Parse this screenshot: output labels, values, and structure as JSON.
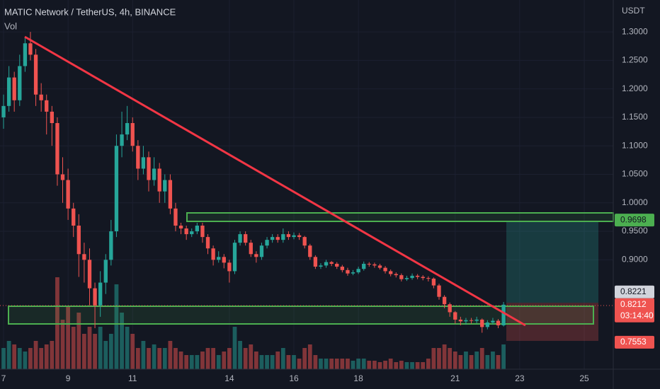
{
  "chart_data": {
    "type": "candlestick",
    "title": "MATIC Network / TetherUS, 4h, BINANCE",
    "volume_label": "Vol",
    "y_axis_label": "USDT",
    "up_color": "#26a69a",
    "down_color": "#ef5350",
    "xlim": [
      6.89,
      25.9
    ],
    "xticks": [
      7,
      9,
      11,
      14,
      16,
      18,
      21,
      23,
      25
    ],
    "ylim": [
      0.708,
      1.356
    ],
    "yticks": [
      {
        "value": 1.3,
        "label": "1.3000"
      },
      {
        "value": 1.25,
        "label": "1.2500"
      },
      {
        "value": 1.2,
        "label": "1.2000"
      },
      {
        "value": 1.15,
        "label": "1.1500"
      },
      {
        "value": 1.1,
        "label": "1.1000"
      },
      {
        "value": 1.05,
        "label": "1.0500"
      },
      {
        "value": 1.0,
        "label": "1.0000"
      },
      {
        "value": 0.95,
        "label": "0.9500"
      },
      {
        "value": 0.9,
        "label": "0.9000"
      }
    ],
    "grid": true,
    "x": [
      7,
      7.167,
      7.333,
      7.5,
      7.667,
      7.833,
      8,
      8.167,
      8.333,
      8.5,
      8.667,
      8.833,
      9,
      9.167,
      9.333,
      9.5,
      9.667,
      9.833,
      10,
      10.167,
      10.333,
      10.5,
      10.667,
      10.833,
      11,
      11.167,
      11.333,
      11.5,
      11.667,
      11.833,
      12,
      12.167,
      12.333,
      12.5,
      12.667,
      12.833,
      13,
      13.167,
      13.333,
      13.5,
      13.667,
      13.833,
      14,
      14.167,
      14.333,
      14.5,
      14.667,
      14.833,
      15,
      15.167,
      15.333,
      15.5,
      15.667,
      15.833,
      16,
      16.167,
      16.333,
      16.5,
      16.667,
      16.833,
      17,
      17.167,
      17.333,
      17.5,
      17.667,
      17.833,
      18,
      18.167,
      18.333,
      18.5,
      18.667,
      18.833,
      19,
      19.167,
      19.333,
      19.5,
      19.667,
      19.833,
      20,
      20.167,
      20.333,
      20.5,
      20.667,
      20.833,
      21,
      21.167,
      21.333,
      21.5,
      21.667,
      21.833,
      22,
      22.167,
      22.333,
      22.5
    ],
    "open": [
      1.15,
      1.17,
      1.22,
      1.18,
      1.24,
      1.28,
      1.26,
      1.19,
      1.18,
      1.16,
      1.14,
      1.05,
      1.04,
      0.99,
      0.96,
      0.91,
      0.9,
      0.85,
      0.82,
      0.86,
      0.9,
      0.95,
      1.1,
      1.12,
      1.14,
      1.1,
      1.06,
      1.08,
      1.04,
      1.06,
      1.02,
      1.04,
      0.99,
      0.96,
      0.955,
      0.945,
      0.95,
      0.96,
      0.94,
      0.92,
      0.9,
      0.905,
      0.895,
      0.88,
      0.93,
      0.945,
      0.93,
      0.91,
      0.905,
      0.925,
      0.935,
      0.94,
      0.935,
      0.945,
      0.94,
      0.943,
      0.94,
      0.925,
      0.905,
      0.888,
      0.89,
      0.896,
      0.893,
      0.888,
      0.882,
      0.876,
      0.878,
      0.884,
      0.893,
      0.892,
      0.89,
      0.886,
      0.88,
      0.875,
      0.873,
      0.866,
      0.868,
      0.872,
      0.87,
      0.868,
      0.867,
      0.855,
      0.835,
      0.822,
      0.808,
      0.795,
      0.792,
      0.794,
      0.793,
      0.795,
      0.782,
      0.79,
      0.793,
      0.785
    ],
    "high": [
      1.19,
      1.24,
      1.23,
      1.26,
      1.29,
      1.3,
      1.27,
      1.21,
      1.19,
      1.17,
      1.15,
      1.08,
      1.06,
      1.0,
      0.98,
      0.93,
      0.92,
      0.86,
      0.88,
      0.91,
      0.97,
      1.12,
      1.16,
      1.17,
      1.15,
      1.11,
      1.1,
      1.09,
      1.08,
      1.07,
      1.05,
      1.05,
      1.0,
      0.965,
      0.96,
      0.955,
      0.965,
      0.965,
      0.945,
      0.925,
      0.915,
      0.91,
      0.9,
      0.935,
      0.95,
      0.95,
      0.935,
      0.915,
      0.93,
      0.94,
      0.945,
      0.945,
      0.955,
      0.95,
      0.948,
      0.947,
      0.942,
      0.928,
      0.908,
      0.894,
      0.9,
      0.898,
      0.896,
      0.891,
      0.886,
      0.882,
      0.888,
      0.897,
      0.896,
      0.895,
      0.893,
      0.889,
      0.883,
      0.878,
      0.876,
      0.872,
      0.876,
      0.875,
      0.873,
      0.871,
      0.869,
      0.858,
      0.838,
      0.825,
      0.81,
      0.8,
      0.798,
      0.798,
      0.8,
      0.797,
      0.794,
      0.798,
      0.796,
      0.826
    ],
    "low": [
      1.13,
      1.16,
      1.16,
      1.17,
      1.23,
      1.25,
      1.17,
      1.16,
      1.12,
      1.1,
      1.03,
      1.0,
      0.97,
      0.94,
      0.87,
      0.86,
      0.82,
      0.78,
      0.8,
      0.84,
      0.89,
      0.94,
      1.08,
      1.11,
      1.09,
      1.04,
      1.05,
      1.02,
      1.03,
      1.0,
      1.0,
      0.98,
      0.95,
      0.945,
      0.935,
      0.94,
      0.945,
      0.93,
      0.91,
      0.89,
      0.895,
      0.885,
      0.86,
      0.875,
      0.925,
      0.925,
      0.905,
      0.895,
      0.9,
      0.92,
      0.93,
      0.93,
      0.93,
      0.935,
      0.936,
      0.935,
      0.92,
      0.9,
      0.884,
      0.884,
      0.886,
      0.889,
      0.884,
      0.878,
      0.872,
      0.873,
      0.875,
      0.881,
      0.888,
      0.886,
      0.883,
      0.876,
      0.871,
      0.869,
      0.862,
      0.863,
      0.865,
      0.866,
      0.864,
      0.862,
      0.85,
      0.83,
      0.815,
      0.8,
      0.788,
      0.785,
      0.786,
      0.788,
      0.789,
      0.772,
      0.778,
      0.786,
      0.78,
      0.783
    ],
    "close": [
      1.17,
      1.22,
      1.18,
      1.24,
      1.28,
      1.26,
      1.19,
      1.18,
      1.16,
      1.14,
      1.05,
      1.04,
      0.99,
      0.96,
      0.91,
      0.9,
      0.85,
      0.82,
      0.86,
      0.9,
      0.95,
      1.1,
      1.12,
      1.14,
      1.1,
      1.06,
      1.08,
      1.04,
      1.06,
      1.02,
      1.04,
      0.99,
      0.96,
      0.955,
      0.945,
      0.95,
      0.96,
      0.94,
      0.92,
      0.9,
      0.905,
      0.895,
      0.88,
      0.93,
      0.945,
      0.93,
      0.91,
      0.905,
      0.925,
      0.935,
      0.94,
      0.935,
      0.945,
      0.94,
      0.943,
      0.94,
      0.925,
      0.905,
      0.888,
      0.89,
      0.896,
      0.893,
      0.888,
      0.882,
      0.876,
      0.878,
      0.884,
      0.893,
      0.892,
      0.89,
      0.886,
      0.88,
      0.875,
      0.873,
      0.866,
      0.868,
      0.872,
      0.87,
      0.868,
      0.867,
      0.855,
      0.835,
      0.822,
      0.808,
      0.795,
      0.792,
      0.794,
      0.793,
      0.795,
      0.782,
      0.79,
      0.793,
      0.785,
      0.8212
    ],
    "volume": [
      3,
      4,
      3.5,
      3,
      2.5,
      3,
      4,
      3,
      3.5,
      4,
      13,
      7,
      9,
      6,
      8,
      5,
      6,
      5,
      6,
      4,
      5,
      12,
      8,
      6,
      5,
      3,
      4,
      3,
      3.5,
      3,
      3,
      4,
      3,
      2.5,
      2,
      2,
      2,
      2.5,
      3,
      3,
      2,
      2.5,
      3,
      6,
      4,
      3,
      3.5,
      2.5,
      2,
      2,
      2,
      2.5,
      3,
      2,
      2,
      1.5,
      3,
      3.5,
      2,
      1.5,
      1.5,
      1.5,
      1.5,
      1.5,
      1.5,
      1.2,
      1.5,
      1.5,
      1.2,
      1.2,
      1,
      1.2,
      1.5,
      1,
      1.2,
      1,
      1,
      1,
      1,
      1.5,
      3,
      3,
      3.5,
      3,
      2.5,
      2,
      2.5,
      2,
      2.5,
      3,
      2,
      2.5,
      2,
      3.5
    ],
    "price_labels": [
      {
        "value": 0.9698,
        "label": "0.9698",
        "color": "#4caf50"
      },
      {
        "value": 0.8221,
        "label": "0.8221",
        "color": "#d1d4dc"
      },
      {
        "value": 0.8212,
        "label": "0.8212",
        "color": "#ef5350",
        "countdown": "03:14:40"
      },
      {
        "value": 0.7553,
        "label": "0.7553",
        "color": "#ef5350"
      }
    ]
  }
}
